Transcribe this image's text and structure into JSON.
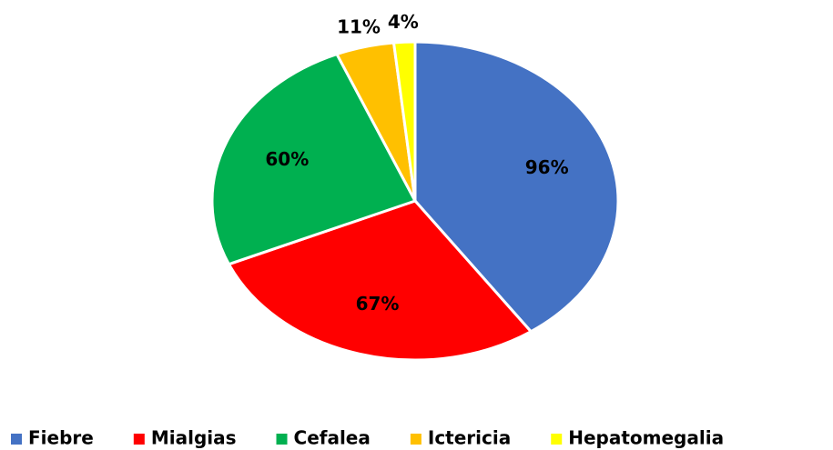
{
  "chart_data": {
    "type": "pie",
    "categories": [
      "Fiebre",
      "Mialgias",
      "Cefalea",
      "Ictericia",
      "Hepatomegalia"
    ],
    "values": [
      96,
      67,
      60,
      11,
      4
    ],
    "value_labels": [
      "96%",
      "67%",
      "60%",
      "11%",
      "4%"
    ],
    "colors": [
      "#4472c4",
      "#ff0000",
      "#00b050",
      "#ffc000",
      "#ffff00"
    ],
    "legend": "bottom"
  }
}
